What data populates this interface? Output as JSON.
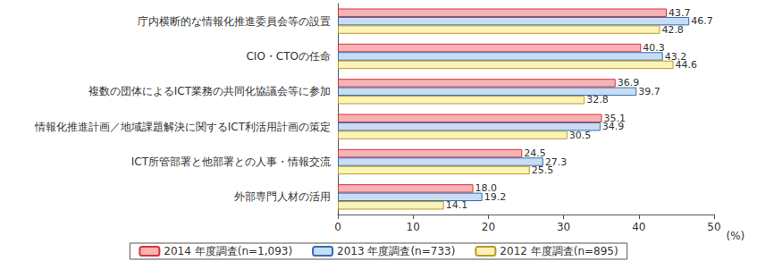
{
  "chart_data": {
    "type": "bar",
    "orientation": "horizontal",
    "categories": [
      "庁内横断的な情報化推進委員会等の設置",
      "CIO・CTOの任命",
      "複数の団体によるICT業務の共同化協議会等に参加",
      "情報化推進計画／地域課題解決に関するICT利活用計画の策定",
      "ICT所管部署と他部署との人事・情報交流",
      "外部専門人材の活用"
    ],
    "series": [
      {
        "name": "2014 年度調査(n=1,093)",
        "color": "#f5b3b5",
        "values": [
          43.7,
          40.3,
          36.9,
          35.1,
          24.5,
          18.0
        ],
        "value_labels": [
          "43.7",
          "40.3",
          "36.9",
          "35.1",
          "24.5",
          "18.0"
        ]
      },
      {
        "name": "2013 年度調査(n=733)",
        "color": "#c9dcf2",
        "values": [
          46.7,
          43.2,
          39.7,
          34.9,
          27.3,
          19.2
        ]
      },
      {
        "name": "2012 年度調査(n=895)",
        "color": "#fcf3b8",
        "values": [
          42.8,
          44.6,
          32.8,
          30.5,
          25.5,
          14.1
        ]
      }
    ],
    "xlabel": "(%)",
    "xlim": [
      0,
      50
    ],
    "xticks": [
      0,
      10,
      20,
      30,
      40,
      50
    ],
    "grid": false,
    "legend": "bottom",
    "data_labels": true
  }
}
